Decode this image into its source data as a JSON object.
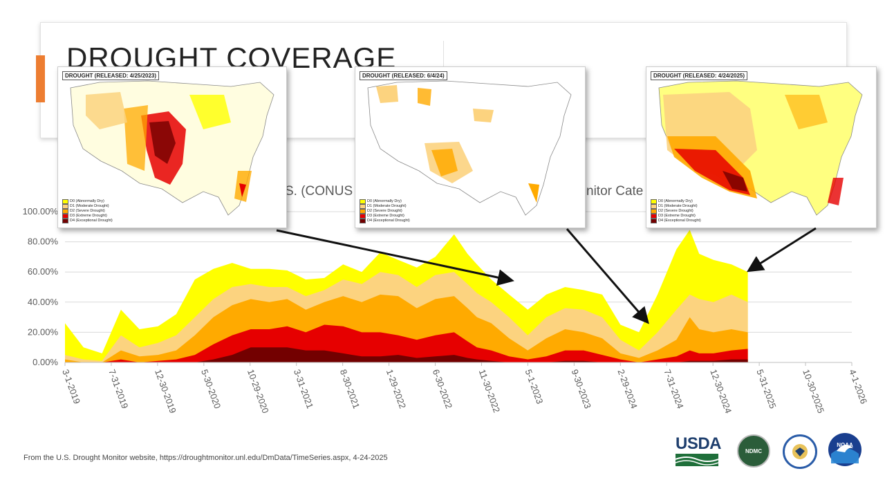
{
  "slide": {
    "title": "DROUGHT COVERAGE",
    "chart_title_fragment_left": "S. (CONUS",
    "chart_title_fragment_right": "nitor Cate",
    "source_note": "From the U.S. Drought Monitor website, https://droughtmonitor.unl.edu/DmData/TimeSeries.aspx, 4-24-2025"
  },
  "maps": [
    {
      "label": "DROUGHT (RELEASED: 4/25/2023)"
    },
    {
      "label": "DROUGHT (RELEASED: 6/4/24)"
    },
    {
      "label": "DROUGHT (RELEASED: 4/24/2025)"
    }
  ],
  "map_legend": [
    {
      "label": "D0 (Abnormally Dry)",
      "color": "#ffff00"
    },
    {
      "label": "D1 (Moderate Drought)",
      "color": "#fcd37f"
    },
    {
      "label": "D2 (Severe Drought)",
      "color": "#ffaa00"
    },
    {
      "label": "D3 (Extreme Drought)",
      "color": "#e60000"
    },
    {
      "label": "D4 (Exceptional Drought)",
      "color": "#730000"
    }
  ],
  "logos": {
    "usda": "USDA",
    "ndmc": "NDMC",
    "commerce_icon": "commerce-seal-icon",
    "noaa": "NOAA"
  },
  "chart_data": {
    "type": "area",
    "ylim": [
      0,
      100
    ],
    "y_ticks": [
      "0.00%",
      "20.00%",
      "40.00%",
      "60.00%",
      "80.00%",
      "100.00%"
    ],
    "x_ticks": [
      "3-1-2019",
      "7-31-2019",
      "12-30-2019",
      "5-30-2020",
      "10-29-2020",
      "3-31-2021",
      "8-30-2021",
      "1-29-2022",
      "6-30-2022",
      "11-30-2022",
      "5-1-2023",
      "9-30-2023",
      "2-29-2024",
      "7-31-2024",
      "12-30-2024",
      "5-31-2025",
      "10-30-2025",
      "4-1-2026"
    ],
    "x": [
      "2019-03-01",
      "2019-05-01",
      "2019-07-01",
      "2019-09-01",
      "2019-11-01",
      "2020-01-01",
      "2020-03-01",
      "2020-05-01",
      "2020-07-01",
      "2020-09-01",
      "2020-11-01",
      "2021-01-01",
      "2021-03-01",
      "2021-05-01",
      "2021-07-01",
      "2021-09-01",
      "2021-11-01",
      "2022-01-01",
      "2022-03-01",
      "2022-05-01",
      "2022-07-01",
      "2022-09-01",
      "2022-10-15",
      "2022-11-15",
      "2023-01-01",
      "2023-03-01",
      "2023-05-01",
      "2023-07-01",
      "2023-09-01",
      "2023-11-01",
      "2024-01-01",
      "2024-03-01",
      "2024-05-01",
      "2024-07-01",
      "2024-09-01",
      "2024-10-15",
      "2024-11-15",
      "2025-01-01",
      "2025-03-01",
      "2025-04-24"
    ],
    "series": [
      {
        "name": "D0",
        "color": "#ffff00",
        "values": [
          26,
          10,
          6,
          35,
          22,
          24,
          32,
          55,
          62,
          66,
          62,
          62,
          61,
          55,
          56,
          65,
          60,
          73,
          68,
          63,
          70,
          85,
          72,
          65,
          55,
          45,
          35,
          45,
          50,
          48,
          45,
          25,
          20,
          45,
          75,
          88,
          72,
          68,
          65,
          60
        ]
      },
      {
        "name": "D1",
        "color": "#fcd37f",
        "values": [
          5,
          2,
          1,
          18,
          10,
          13,
          18,
          30,
          42,
          50,
          52,
          50,
          50,
          44,
          48,
          55,
          52,
          60,
          58,
          50,
          58,
          60,
          52,
          46,
          40,
          30,
          18,
          30,
          36,
          35,
          30,
          15,
          8,
          20,
          35,
          45,
          42,
          40,
          45,
          40
        ]
      },
      {
        "name": "D2",
        "color": "#ffaa00",
        "values": [
          2,
          0,
          0,
          8,
          4,
          5,
          8,
          18,
          30,
          38,
          42,
          40,
          42,
          35,
          40,
          44,
          40,
          45,
          44,
          36,
          42,
          44,
          36,
          30,
          26,
          16,
          8,
          16,
          22,
          20,
          16,
          6,
          3,
          8,
          15,
          30,
          22,
          20,
          22,
          20
        ]
      },
      {
        "name": "D3",
        "color": "#e60000",
        "values": [
          0,
          0,
          0,
          2,
          0,
          1,
          2,
          5,
          12,
          18,
          22,
          22,
          24,
          20,
          25,
          24,
          20,
          20,
          18,
          15,
          18,
          20,
          14,
          10,
          8,
          4,
          2,
          4,
          8,
          8,
          5,
          2,
          0,
          2,
          4,
          8,
          6,
          6,
          8,
          9
        ]
      },
      {
        "name": "D4",
        "color": "#730000",
        "values": [
          0,
          0,
          0,
          0,
          0,
          0,
          0,
          0,
          2,
          5,
          10,
          10,
          10,
          8,
          8,
          6,
          4,
          4,
          5,
          3,
          4,
          5,
          3,
          2,
          1,
          0,
          0,
          0,
          1,
          1,
          0,
          0,
          0,
          0,
          0,
          1,
          1,
          1,
          2,
          2
        ]
      }
    ]
  }
}
